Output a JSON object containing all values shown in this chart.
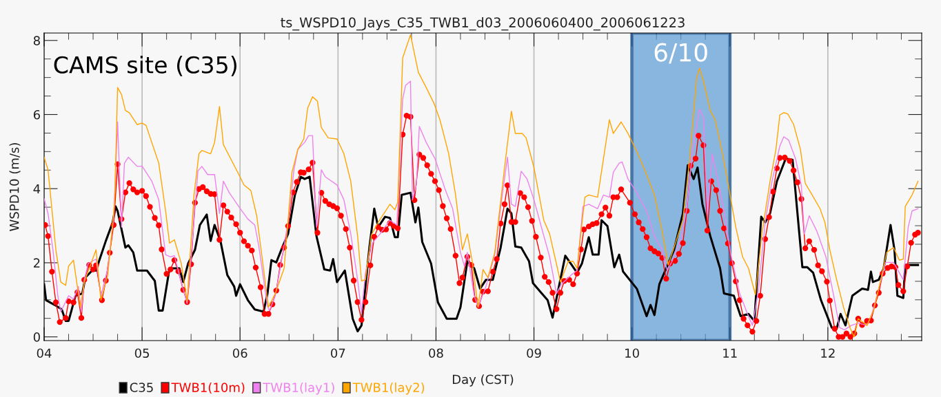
{
  "chart_data": {
    "type": "line",
    "title": "ts_WSPD10_Jays_C35_TWB1_d03_2006060400_2006061223",
    "xlabel": "Day (CST)",
    "ylabel": "WSPD10 (m/s)",
    "annotations": [
      "CAMS site (C35)"
    ],
    "xlim": [
      4,
      12.958
    ],
    "ylim": [
      -0.1,
      8.2
    ],
    "xticks": [
      {
        "value": 4,
        "label": "04"
      },
      {
        "value": 5,
        "label": "05"
      },
      {
        "value": 6,
        "label": "06"
      },
      {
        "value": 7,
        "label": "07"
      },
      {
        "value": 8,
        "label": "08"
      },
      {
        "value": 9,
        "label": "09"
      },
      {
        "value": 10,
        "label": "10"
      },
      {
        "value": 11,
        "label": "11"
      },
      {
        "value": 12,
        "label": "12"
      }
    ],
    "yticks": [
      0,
      2,
      4,
      6,
      8
    ],
    "grid": "x",
    "legend": "bottom",
    "bands": [
      {
        "axis": "x",
        "from": 10,
        "to": 11,
        "label": "6/10",
        "color": "#5b9bd5"
      }
    ],
    "series": [
      {
        "name": "C35",
        "color": "#000000",
        "marker": "none",
        "x": [
          4.0,
          4.02,
          4.11,
          4.18,
          4.22,
          4.25,
          4.32,
          4.39,
          4.42,
          4.49,
          4.53,
          4.56,
          4.63,
          4.7,
          4.73,
          4.75,
          4.83,
          4.86,
          4.91,
          4.95,
          5.05,
          5.13,
          5.17,
          5.21,
          5.28,
          5.38,
          5.42,
          5.47,
          5.54,
          5.59,
          5.66,
          5.7,
          5.74,
          5.8,
          5.87,
          5.94,
          5.96,
          6.0,
          6.08,
          6.15,
          6.24,
          6.28,
          6.32,
          6.37,
          6.43,
          6.49,
          6.56,
          6.62,
          6.66,
          6.71,
          6.78,
          6.86,
          6.92,
          6.95,
          6.99,
          7.07,
          7.15,
          7.2,
          7.24,
          7.32,
          7.37,
          7.41,
          7.48,
          7.53,
          7.58,
          7.61,
          7.65,
          7.74,
          7.79,
          7.82,
          7.86,
          7.95,
          8.02,
          8.11,
          8.21,
          8.25,
          8.32,
          8.39,
          8.45,
          8.51,
          8.58,
          8.66,
          8.73,
          8.77,
          8.81,
          8.87,
          8.95,
          8.99,
          9.08,
          9.14,
          9.19,
          9.32,
          9.44,
          9.49,
          9.56,
          9.6,
          9.66,
          9.69,
          9.75,
          9.82,
          9.87,
          9.91,
          10.05,
          10.15,
          10.19,
          10.23,
          10.28,
          10.36,
          10.43,
          10.52,
          10.57,
          10.63,
          10.67,
          10.72,
          10.8,
          10.9,
          10.94,
          11.04,
          11.11,
          11.19,
          11.25,
          11.32,
          11.36,
          11.41,
          11.48,
          11.57,
          11.64,
          11.74,
          11.79,
          11.85,
          11.93,
          12.04,
          12.09,
          12.13,
          12.18,
          12.25,
          12.35,
          12.41,
          12.44,
          12.46,
          12.52,
          12.57,
          12.64,
          12.68,
          12.71,
          12.77,
          12.79,
          12.92
        ],
        "values": [
          1.42,
          0.99,
          0.86,
          0.74,
          0.43,
          0.43,
          1.11,
          1.17,
          1.6,
          1.79,
          1.79,
          2.04,
          2.59,
          3.09,
          3.52,
          3.4,
          2.41,
          2.47,
          2.28,
          1.79,
          1.79,
          1.51,
          0.71,
          0.71,
          1.85,
          1.85,
          1.48,
          1.98,
          2.35,
          3.02,
          3.3,
          2.59,
          3.02,
          2.59,
          1.67,
          1.36,
          1.11,
          1.42,
          0.99,
          0.74,
          0.68,
          1.17,
          2.07,
          2.01,
          2.41,
          2.78,
          3.83,
          4.32,
          4.26,
          4.32,
          2.72,
          1.82,
          1.79,
          2.1,
          1.48,
          1.79,
          0.49,
          0.15,
          0.31,
          2.41,
          3.46,
          2.96,
          3.24,
          3.21,
          2.69,
          2.69,
          3.83,
          3.89,
          3.09,
          3.49,
          2.56,
          1.98,
          0.93,
          0.49,
          0.49,
          0.8,
          2.04,
          1.85,
          1.3,
          1.54,
          1.54,
          2.41,
          3.46,
          3.33,
          2.44,
          2.41,
          2.04,
          1.45,
          1.17,
          0.99,
          0.52,
          2.19,
          1.73,
          1.98,
          2.69,
          2.22,
          2.22,
          3.15,
          2.99,
          1.88,
          2.22,
          1.76,
          1.3,
          0.56,
          0.86,
          0.59,
          1.42,
          1.91,
          2.35,
          3.33,
          4.63,
          4.26,
          4.57,
          3.58,
          2.72,
          1.85,
          1.17,
          1.11,
          0.56,
          0.62,
          0.43,
          3.24,
          3.09,
          3.33,
          4.2,
          4.81,
          4.78,
          1.88,
          1.88,
          1.73,
          0.99,
          0.25,
          0.22,
          0.62,
          0.31,
          1.11,
          1.3,
          1.27,
          1.76,
          1.48,
          1.54,
          1.85,
          3.02,
          2.35,
          1.11,
          1.05,
          1.94,
          1.94
        ]
      },
      {
        "name": "TWB1(10m)",
        "color": "#ff0000",
        "marker": "circle",
        "x": [
          4.01,
          4.04,
          4.08,
          4.12,
          4.16,
          4.22,
          4.25,
          4.3,
          4.34,
          4.38,
          4.41,
          4.46,
          4.5,
          4.53,
          4.59,
          4.63,
          4.67,
          4.71,
          4.75,
          4.79,
          4.83,
          4.87,
          4.91,
          4.95,
          5.0,
          5.04,
          5.08,
          5.13,
          5.17,
          5.2,
          5.25,
          5.29,
          5.33,
          5.37,
          5.42,
          5.46,
          5.5,
          5.54,
          5.58,
          5.62,
          5.66,
          5.7,
          5.74,
          5.79,
          5.83,
          5.87,
          5.91,
          5.96,
          6.0,
          6.04,
          6.08,
          6.12,
          6.16,
          6.21,
          6.25,
          6.29,
          6.33,
          6.37,
          6.41,
          6.45,
          6.49,
          6.54,
          6.58,
          6.62,
          6.65,
          6.7,
          6.74,
          6.79,
          6.83,
          6.87,
          6.91,
          6.95,
          6.99,
          7.03,
          7.08,
          7.12,
          7.16,
          7.2,
          7.24,
          7.28,
          7.33,
          7.37,
          7.41,
          7.45,
          7.49,
          7.53,
          7.57,
          7.61,
          7.66,
          7.7,
          7.74,
          7.78,
          7.83,
          7.87,
          7.91,
          7.95,
          7.99,
          8.03,
          8.07,
          8.11,
          8.15,
          8.2,
          8.24,
          8.27,
          8.32,
          8.36,
          8.4,
          8.44,
          8.48,
          8.53,
          8.58,
          8.62,
          8.66,
          8.7,
          8.73,
          8.77,
          8.81,
          8.86,
          8.9,
          8.94,
          8.98,
          9.02,
          9.07,
          9.11,
          9.15,
          9.19,
          9.23,
          9.27,
          9.31,
          9.36,
          9.4,
          9.44,
          9.48,
          9.51,
          9.56,
          9.6,
          9.64,
          9.69,
          9.73,
          9.77,
          9.81,
          9.85,
          9.89,
          9.98,
          10.03,
          10.07,
          10.11,
          10.15,
          10.19,
          10.23,
          10.27,
          10.31,
          10.35,
          10.39,
          10.44,
          10.48,
          10.52,
          10.56,
          10.6,
          10.65,
          10.68,
          10.73,
          10.77,
          10.81,
          10.86,
          10.9,
          10.94,
          10.98,
          11.02,
          11.06,
          11.1,
          11.14,
          11.18,
          11.23,
          11.27,
          11.31,
          11.36,
          11.4,
          11.44,
          11.48,
          11.51,
          11.56,
          11.61,
          11.65,
          11.69,
          11.73,
          11.77,
          11.81,
          11.86,
          11.9,
          11.94,
          11.99,
          12.02,
          12.07,
          12.11,
          12.15,
          12.19,
          12.23,
          12.27,
          12.31,
          12.35,
          12.4,
          12.44,
          12.48,
          12.52,
          12.56,
          12.61,
          12.65,
          12.69,
          12.72,
          12.77,
          12.81,
          12.85,
          12.89,
          12.92
        ],
        "values": [
          3.02,
          2.72,
          1.76,
          0.93,
          0.4,
          0.51,
          0.96,
          0.93,
          1.2,
          0.51,
          1.54,
          1.94,
          1.82,
          1.93,
          0.99,
          1.52,
          2.27,
          3.02,
          4.66,
          3.18,
          3.9,
          4.15,
          3.98,
          3.9,
          3.94,
          3.8,
          3.51,
          3.21,
          3.01,
          2.36,
          1.7,
          1.82,
          2.07,
          1.77,
          1.27,
          0.94,
          1.96,
          3.62,
          3.99,
          4.04,
          3.93,
          3.86,
          3.85,
          2.62,
          3.55,
          3.38,
          3.22,
          3.04,
          2.81,
          2.58,
          2.46,
          2.33,
          1.87,
          1.34,
          0.62,
          0.62,
          0.88,
          1.25,
          1.94,
          2.41,
          2.99,
          3.9,
          4.18,
          4.44,
          4.43,
          4.52,
          4.7,
          2.81,
          3.89,
          3.67,
          3.58,
          3.53,
          3.47,
          3.27,
          2.91,
          2.41,
          1.52,
          0.94,
          0.46,
          0.94,
          1.93,
          2.7,
          2.96,
          2.89,
          2.9,
          3.07,
          2.99,
          2.93,
          5.46,
          5.97,
          5.94,
          3.69,
          4.92,
          4.83,
          4.63,
          4.4,
          4.2,
          3.96,
          3.53,
          3.2,
          2.91,
          2.19,
          1.45,
          1.6,
          2.16,
          1.94,
          1.0,
          0.83,
          1.22,
          1.23,
          1.76,
          2.1,
          3.06,
          3.58,
          4.09,
          3.1,
          3.1,
          3.88,
          3.77,
          3.5,
          3.13,
          2.7,
          2.14,
          1.62,
          1.48,
          1.19,
          0.75,
          1.19,
          1.51,
          1.54,
          1.42,
          1.71,
          2.36,
          2.9,
          2.98,
          3.04,
          3.07,
          3.31,
          3.49,
          3.27,
          3.77,
          3.77,
          3.98,
          3.62,
          3.31,
          3.09,
          2.91,
          2.69,
          2.39,
          2.31,
          2.25,
          2.13,
          1.57,
          1.98,
          2.05,
          2.24,
          2.53,
          3.4,
          4.62,
          4.81,
          5.43,
          5.17,
          2.87,
          4.2,
          3.96,
          3.4,
          2.93,
          2.52,
          1.99,
          1.5,
          0.99,
          0.49,
          0.31,
          0.14,
          0.43,
          1.11,
          2.64,
          3.23,
          3.92,
          4.55,
          4.83,
          4.84,
          4.75,
          4.49,
          4.17,
          3.72,
          2.39,
          2.58,
          2.35,
          1.93,
          1.77,
          1.49,
          0.98,
          0.22,
          0.0,
          0.0,
          0.09,
          0.0,
          0.09,
          0.49,
          0.32,
          0.43,
          0.44,
          0.85,
          1.19,
          1.71,
          1.86,
          1.9,
          1.88,
          1.4,
          1.23,
          1.9,
          2.54,
          2.76,
          2.81
        ]
      },
      {
        "name": "TWB1(lay1)",
        "color": "#ee82ee",
        "marker": "none",
        "x": [
          4.0,
          4.04,
          4.09,
          4.14,
          4.17,
          4.25,
          4.3,
          4.35,
          4.38,
          4.41,
          4.45,
          4.53,
          4.58,
          4.65,
          4.71,
          4.75,
          4.79,
          4.82,
          4.86,
          4.95,
          5.0,
          5.1,
          5.17,
          5.24,
          5.29,
          5.33,
          5.4,
          5.46,
          5.52,
          5.57,
          5.61,
          5.67,
          5.74,
          5.79,
          5.83,
          5.89,
          6.01,
          6.08,
          6.15,
          6.19,
          6.28,
          6.3,
          6.36,
          6.43,
          6.5,
          6.55,
          6.59,
          6.66,
          6.7,
          6.74,
          6.78,
          6.83,
          6.87,
          6.99,
          7.06,
          7.13,
          7.2,
          7.24,
          7.28,
          7.35,
          7.43,
          7.53,
          7.6,
          7.66,
          7.69,
          7.74,
          7.76,
          7.8,
          7.83,
          7.9,
          7.99,
          8.09,
          8.17,
          8.25,
          8.29,
          8.32,
          8.39,
          8.43,
          8.51,
          8.6,
          8.67,
          8.73,
          8.77,
          8.81,
          8.87,
          8.93,
          9.0,
          9.07,
          9.16,
          9.23,
          9.28,
          9.38,
          9.44,
          9.5,
          9.56,
          9.65,
          9.71,
          9.77,
          9.81,
          9.87,
          9.9,
          9.96,
          10.05,
          10.15,
          10.23,
          10.31,
          10.36,
          10.41,
          10.5,
          10.56,
          10.62,
          10.69,
          10.73,
          10.77,
          10.82,
          10.87,
          10.94,
          11.01,
          11.1,
          11.18,
          11.23,
          11.29,
          11.36,
          11.43,
          11.51,
          11.55,
          11.6,
          11.67,
          11.73,
          11.76,
          11.81,
          11.89,
          11.98,
          12.06,
          12.12,
          12.17,
          12.24,
          12.31,
          12.4,
          12.45,
          12.52,
          12.59,
          12.67,
          12.73,
          12.77,
          12.82,
          12.86,
          12.92
        ],
        "values": [
          3.73,
          3.33,
          2.35,
          1.11,
          0.68,
          1.11,
          1.02,
          1.36,
          0.68,
          1.54,
          1.98,
          2.1,
          1.11,
          1.85,
          3.21,
          5.8,
          2.96,
          4.69,
          4.85,
          4.6,
          4.61,
          4.2,
          3.7,
          2.22,
          2.16,
          2.19,
          1.48,
          0.9,
          2.78,
          4.48,
          4.6,
          4.38,
          4.38,
          3.33,
          4.2,
          3.89,
          3.43,
          3.18,
          3.02,
          2.47,
          0.83,
          0.71,
          1.11,
          2.16,
          3.27,
          4.51,
          5.06,
          5.25,
          5.43,
          5.43,
          2.96,
          4.51,
          4.32,
          4.1,
          3.7,
          2.78,
          1.54,
          0.65,
          1.73,
          2.53,
          2.78,
          3.15,
          3.02,
          6.42,
          6.79,
          6.9,
          3.7,
          4.1,
          5.68,
          5.25,
          4.81,
          4.01,
          3.46,
          2.28,
          1.91,
          2.28,
          1.11,
          0.8,
          1.36,
          2.22,
          3.7,
          4.85,
          3.58,
          3.52,
          4.47,
          4.26,
          3.7,
          3.02,
          2.16,
          1.17,
          1.42,
          1.67,
          1.79,
          3.52,
          3.58,
          3.46,
          3.83,
          3.77,
          4.44,
          4.69,
          4.72,
          4.26,
          3.89,
          3.4,
          2.72,
          2.35,
          1.79,
          2.04,
          2.65,
          3.46,
          5.06,
          6.14,
          5.93,
          3.33,
          4.94,
          4.32,
          3.4,
          2.22,
          1.17,
          0.62,
          0.31,
          1.23,
          3.09,
          4.2,
          5.15,
          5.4,
          5.31,
          4.81,
          4.07,
          2.78,
          3.27,
          2.84,
          2.16,
          1.11,
          0.25,
          0.19,
          0.31,
          0.37,
          0.31,
          0.62,
          1.3,
          2.01,
          2.01,
          1.73,
          1.54,
          2.96,
          3.4,
          3.46
        ]
      },
      {
        "name": "TWB1(lay2)",
        "color": "#ffa500",
        "marker": "none",
        "x": [
          4.0,
          4.04,
          4.12,
          4.17,
          4.22,
          4.25,
          4.3,
          4.37,
          4.41,
          4.53,
          4.58,
          4.65,
          4.72,
          4.75,
          4.79,
          4.83,
          4.87,
          4.95,
          5.0,
          5.04,
          5.17,
          5.24,
          5.28,
          5.33,
          5.4,
          5.46,
          5.53,
          5.58,
          5.61,
          5.7,
          5.74,
          5.79,
          5.83,
          5.89,
          6.0,
          6.04,
          6.11,
          6.17,
          6.23,
          6.29,
          6.36,
          6.45,
          6.53,
          6.59,
          6.65,
          6.69,
          6.74,
          6.79,
          6.83,
          6.9,
          6.99,
          7.06,
          7.13,
          7.2,
          7.24,
          7.28,
          7.34,
          7.41,
          7.53,
          7.58,
          7.61,
          7.66,
          7.74,
          7.82,
          7.9,
          7.98,
          8.04,
          8.13,
          8.2,
          8.27,
          8.32,
          8.37,
          8.43,
          8.48,
          8.53,
          8.6,
          8.7,
          8.77,
          8.81,
          8.88,
          8.92,
          9.0,
          9.1,
          9.16,
          9.24,
          9.27,
          9.35,
          9.4,
          9.44,
          9.52,
          9.56,
          9.65,
          9.77,
          9.81,
          9.89,
          9.96,
          10.05,
          10.13,
          10.23,
          10.31,
          10.37,
          10.43,
          10.52,
          10.59,
          10.66,
          10.69,
          10.73,
          10.8,
          10.85,
          10.93,
          10.99,
          11.06,
          11.13,
          11.19,
          11.26,
          11.33,
          11.41,
          11.47,
          11.51,
          11.55,
          11.59,
          11.65,
          11.72,
          11.77,
          11.84,
          11.92,
          11.97,
          12.02,
          12.09,
          12.16,
          12.23,
          12.27,
          12.31,
          12.4,
          12.47,
          12.54,
          12.6,
          12.67,
          12.73,
          12.77,
          12.79,
          12.86,
          12.92
        ],
        "values": [
          4.85,
          4.51,
          2.35,
          1.48,
          1.39,
          1.91,
          2.07,
          0.8,
          1.48,
          2.35,
          0.99,
          1.67,
          3.64,
          6.73,
          6.54,
          6.11,
          6.05,
          5.73,
          5.77,
          5.71,
          4.69,
          3.4,
          2.53,
          2.62,
          1.98,
          0.96,
          3.83,
          4.94,
          5.03,
          4.94,
          5.25,
          6.22,
          5.19,
          4.88,
          4.32,
          4.1,
          3.95,
          3.27,
          2.04,
          0.8,
          1.17,
          1.85,
          4.44,
          5.06,
          5.34,
          6.17,
          6.48,
          6.36,
          5.65,
          5.37,
          5.34,
          4.94,
          4.2,
          2.72,
          1.51,
          1.54,
          2.75,
          3.09,
          3.58,
          3.43,
          3.64,
          7.53,
          8.15,
          7.14,
          6.73,
          6.3,
          5.86,
          4.94,
          3.83,
          2.35,
          2.78,
          2.04,
          0.8,
          1.82,
          1.6,
          2.28,
          4.57,
          6.09,
          5.49,
          5.49,
          5.37,
          4.57,
          3.15,
          2.78,
          1.85,
          1.48,
          2.04,
          2.04,
          1.85,
          3.77,
          3.83,
          3.77,
          5.86,
          5.49,
          5.8,
          5.49,
          5.0,
          4.51,
          3.83,
          2.84,
          1.94,
          2.41,
          3.15,
          4.81,
          6.98,
          7.25,
          6.91,
          6.11,
          5.86,
          4.88,
          4.01,
          2.96,
          2.16,
          1.85,
          1.14,
          2.84,
          4.2,
          5.06,
          5.99,
          6.05,
          6.02,
          5.74,
          5.06,
          4.14,
          3.83,
          3.46,
          3.09,
          2.35,
          1.54,
          0.8,
          0.22,
          0.0,
          0.49,
          0.31,
          0.74,
          1.54,
          2.28,
          2.41,
          2.07,
          2.1,
          3.52,
          3.83,
          4.2
        ]
      }
    ]
  }
}
